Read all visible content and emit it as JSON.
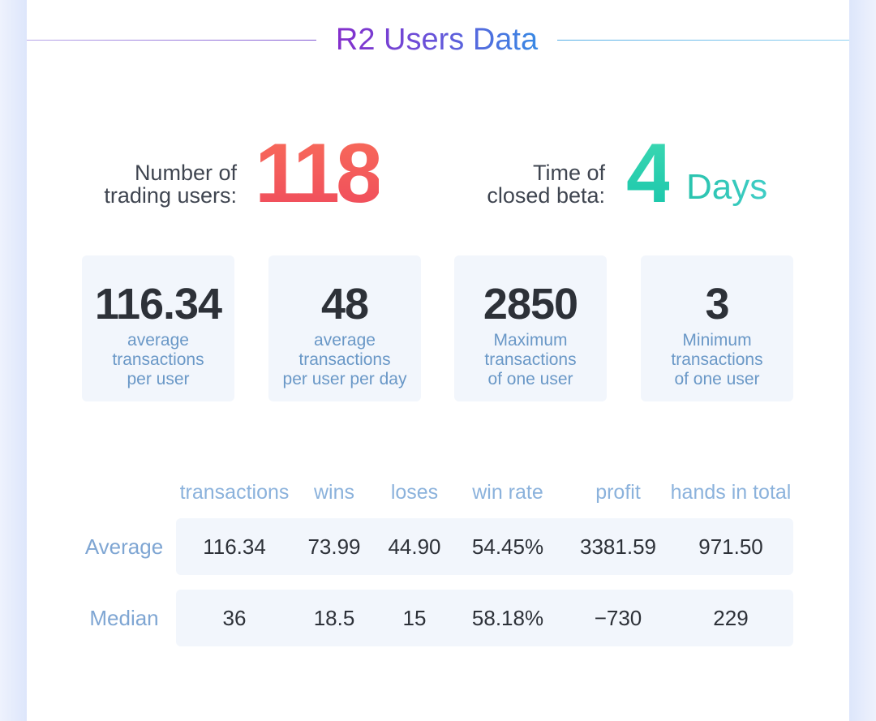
{
  "title": "R2 Users Data",
  "hero": {
    "users_label_line1": "Number of",
    "users_label_line2": "trading users:",
    "users_value": "118",
    "beta_label_line1": "Time of",
    "beta_label_line2": "closed beta:",
    "beta_value": "4",
    "beta_unit": "Days"
  },
  "stats": [
    {
      "value": "116.34",
      "line1": "average",
      "line2": "transactions",
      "line3": "per user"
    },
    {
      "value": "48",
      "line1": "average",
      "line2": "transactions",
      "line3": "per user per day"
    },
    {
      "value": "2850",
      "line1": "Maximum",
      "line2": "transactions",
      "line3": "of one user"
    },
    {
      "value": "3",
      "line1": "Minimum",
      "line2": "transactions",
      "line3": "of one user"
    }
  ],
  "table": {
    "columns": [
      "transactions",
      "wins",
      "loses",
      "win rate",
      "profit",
      "hands in total"
    ],
    "rows": [
      {
        "label": "Average",
        "cells": [
          "116.34",
          "73.99",
          "44.90",
          "54.45%",
          "3381.59",
          "971.50"
        ]
      },
      {
        "label": "Median",
        "cells": [
          "36",
          "18.5",
          "15",
          "58.18%",
          "−730",
          "229"
        ]
      }
    ]
  },
  "colors": {
    "title_gradient_start": "#8a27c9",
    "title_gradient_end": "#2f93e6",
    "users_number": "#f25a5a",
    "days_number": "#22cbb0",
    "stat_box_bg": "#f2f6fc",
    "label_blue": "#7fa6d3"
  }
}
